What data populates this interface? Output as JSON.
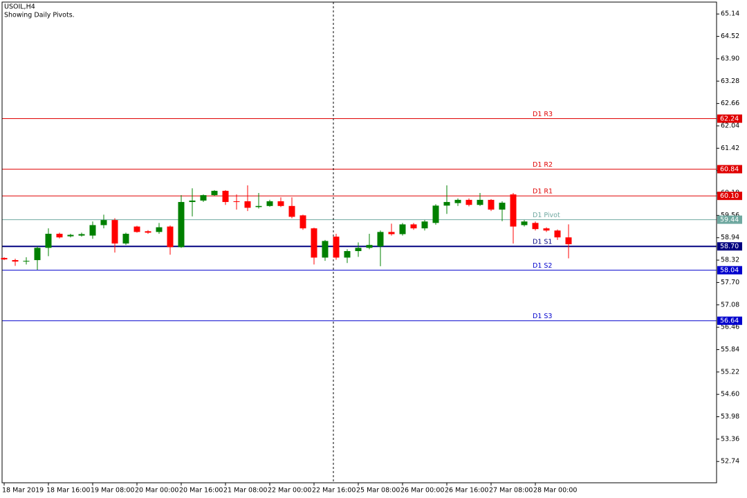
{
  "chart_data": {
    "type": "candlestick",
    "title": "USOIL,H4",
    "subtitle": "Showing Daily Pivots.",
    "up_color": "#008000",
    "down_color": "#ff0000",
    "ylim": [
      52.15,
      65.47
    ],
    "yticks": [
      65.14,
      64.52,
      {
        "value": 63.9,
        "label": "63.90"
      },
      63.28,
      62.66,
      62.04,
      61.42,
      {
        "value": 60.8,
        "label": "60.80"
      },
      60.18,
      59.56,
      58.94,
      58.32,
      {
        "value": 57.7,
        "label": "57.70"
      },
      57.08,
      56.46,
      55.84,
      55.22,
      {
        "value": 54.6,
        "label": "54.60"
      },
      53.98,
      53.36,
      52.74
    ],
    "categories": [
      "18 Mar 2019",
      null,
      null,
      null,
      "18 Mar 16:00",
      null,
      null,
      null,
      "19 Mar 08:00",
      null,
      null,
      null,
      "20 Mar 00:00",
      null,
      null,
      null,
      "20 Mar 16:00",
      null,
      null,
      null,
      "21 Mar 08:00",
      null,
      null,
      null,
      "22 Mar 00:00",
      null,
      null,
      null,
      "22 Mar 16:00",
      null,
      null,
      null,
      "25 Mar 08:00",
      null,
      null,
      null,
      "26 Mar 00:00",
      null,
      null,
      null,
      "26 Mar 16:00",
      null,
      null,
      null,
      "27 Mar 08:00",
      null,
      null,
      null,
      "28 Mar 00:00",
      null,
      null,
      null
    ],
    "open": [
      58.38,
      58.32,
      58.28,
      58.32,
      58.66,
      59.05,
      58.98,
      59.0,
      59.0,
      59.29,
      59.43,
      58.78,
      59.25,
      59.12,
      59.1,
      59.25,
      58.68,
      59.93,
      59.97,
      60.12,
      60.24,
      59.95,
      59.95,
      59.79,
      59.82,
      59.95,
      59.82,
      59.56,
      59.2,
      58.39,
      58.97,
      58.39,
      58.57,
      58.66,
      58.7,
      59.1,
      59.04,
      59.31,
      59.2,
      59.35,
      59.83,
      59.9,
      59.99,
      59.85,
      59.99,
      59.72,
      60.14,
      59.29,
      59.35,
      59.2,
      59.14,
      58.95
    ],
    "high": [
      58.4,
      58.36,
      58.4,
      58.7,
      59.2,
      59.08,
      59.05,
      59.08,
      59.39,
      59.58,
      59.48,
      59.08,
      59.27,
      59.15,
      59.35,
      59.28,
      60.12,
      60.31,
      60.14,
      60.26,
      60.26,
      60.14,
      60.39,
      60.18,
      59.99,
      60.06,
      60.06,
      59.58,
      59.22,
      58.88,
      59.05,
      58.62,
      58.81,
      59.05,
      59.14,
      59.33,
      59.35,
      59.35,
      59.43,
      59.87,
      60.39,
      60.03,
      60.03,
      60.18,
      60.01,
      59.95,
      60.18,
      59.43,
      59.39,
      59.23,
      59.17,
      59.31
    ],
    "low": [
      58.32,
      58.16,
      58.2,
      58.05,
      58.43,
      58.92,
      58.95,
      58.97,
      58.91,
      59.2,
      58.53,
      58.74,
      59.08,
      59.05,
      59.05,
      58.47,
      58.66,
      59.53,
      59.93,
      60.1,
      59.85,
      59.72,
      59.68,
      59.75,
      59.8,
      59.79,
      59.48,
      59.16,
      58.2,
      58.3,
      58.33,
      58.24,
      58.41,
      58.62,
      58.15,
      59.0,
      59.0,
      59.16,
      59.14,
      59.3,
      59.6,
      59.82,
      59.81,
      59.82,
      59.68,
      59.4,
      58.78,
      59.25,
      59.14,
      59.1,
      58.88,
      58.37
    ],
    "close": [
      58.34,
      58.28,
      58.3,
      58.66,
      59.05,
      58.95,
      59.02,
      59.04,
      59.29,
      59.43,
      58.78,
      59.05,
      59.1,
      59.08,
      59.23,
      58.68,
      59.93,
      59.97,
      60.12,
      60.24,
      59.93,
      59.93,
      59.77,
      59.82,
      59.95,
      59.82,
      59.52,
      59.2,
      58.39,
      58.85,
      58.39,
      58.57,
      58.66,
      58.74,
      59.1,
      59.04,
      59.31,
      59.2,
      59.39,
      59.83,
      59.93,
      59.99,
      59.85,
      59.99,
      59.72,
      59.91,
      59.25,
      59.39,
      59.18,
      59.14,
      58.95,
      58.76
    ],
    "levels": [
      {
        "name": "D1 R3",
        "value": 62.24,
        "label": "62.24",
        "color": "#e00000"
      },
      {
        "name": "D1 R2",
        "value": 60.84,
        "label": "60.84",
        "color": "#e00000"
      },
      {
        "name": "D1 R1",
        "value": 60.1,
        "label": "60.10",
        "color": "#e00000"
      },
      {
        "name": "D1 Pivot",
        "value": 59.44,
        "label": "59.44",
        "color": "#6fa8a0"
      },
      {
        "name": "D1 S1",
        "value": 58.7,
        "label": "58.70",
        "color": "#000080"
      },
      {
        "name": "D1 S2",
        "value": 58.04,
        "label": "58.04",
        "color": "#0000cd"
      },
      {
        "name": "D1 S3",
        "value": 56.64,
        "label": "56.64",
        "color": "#0000cd"
      }
    ]
  }
}
